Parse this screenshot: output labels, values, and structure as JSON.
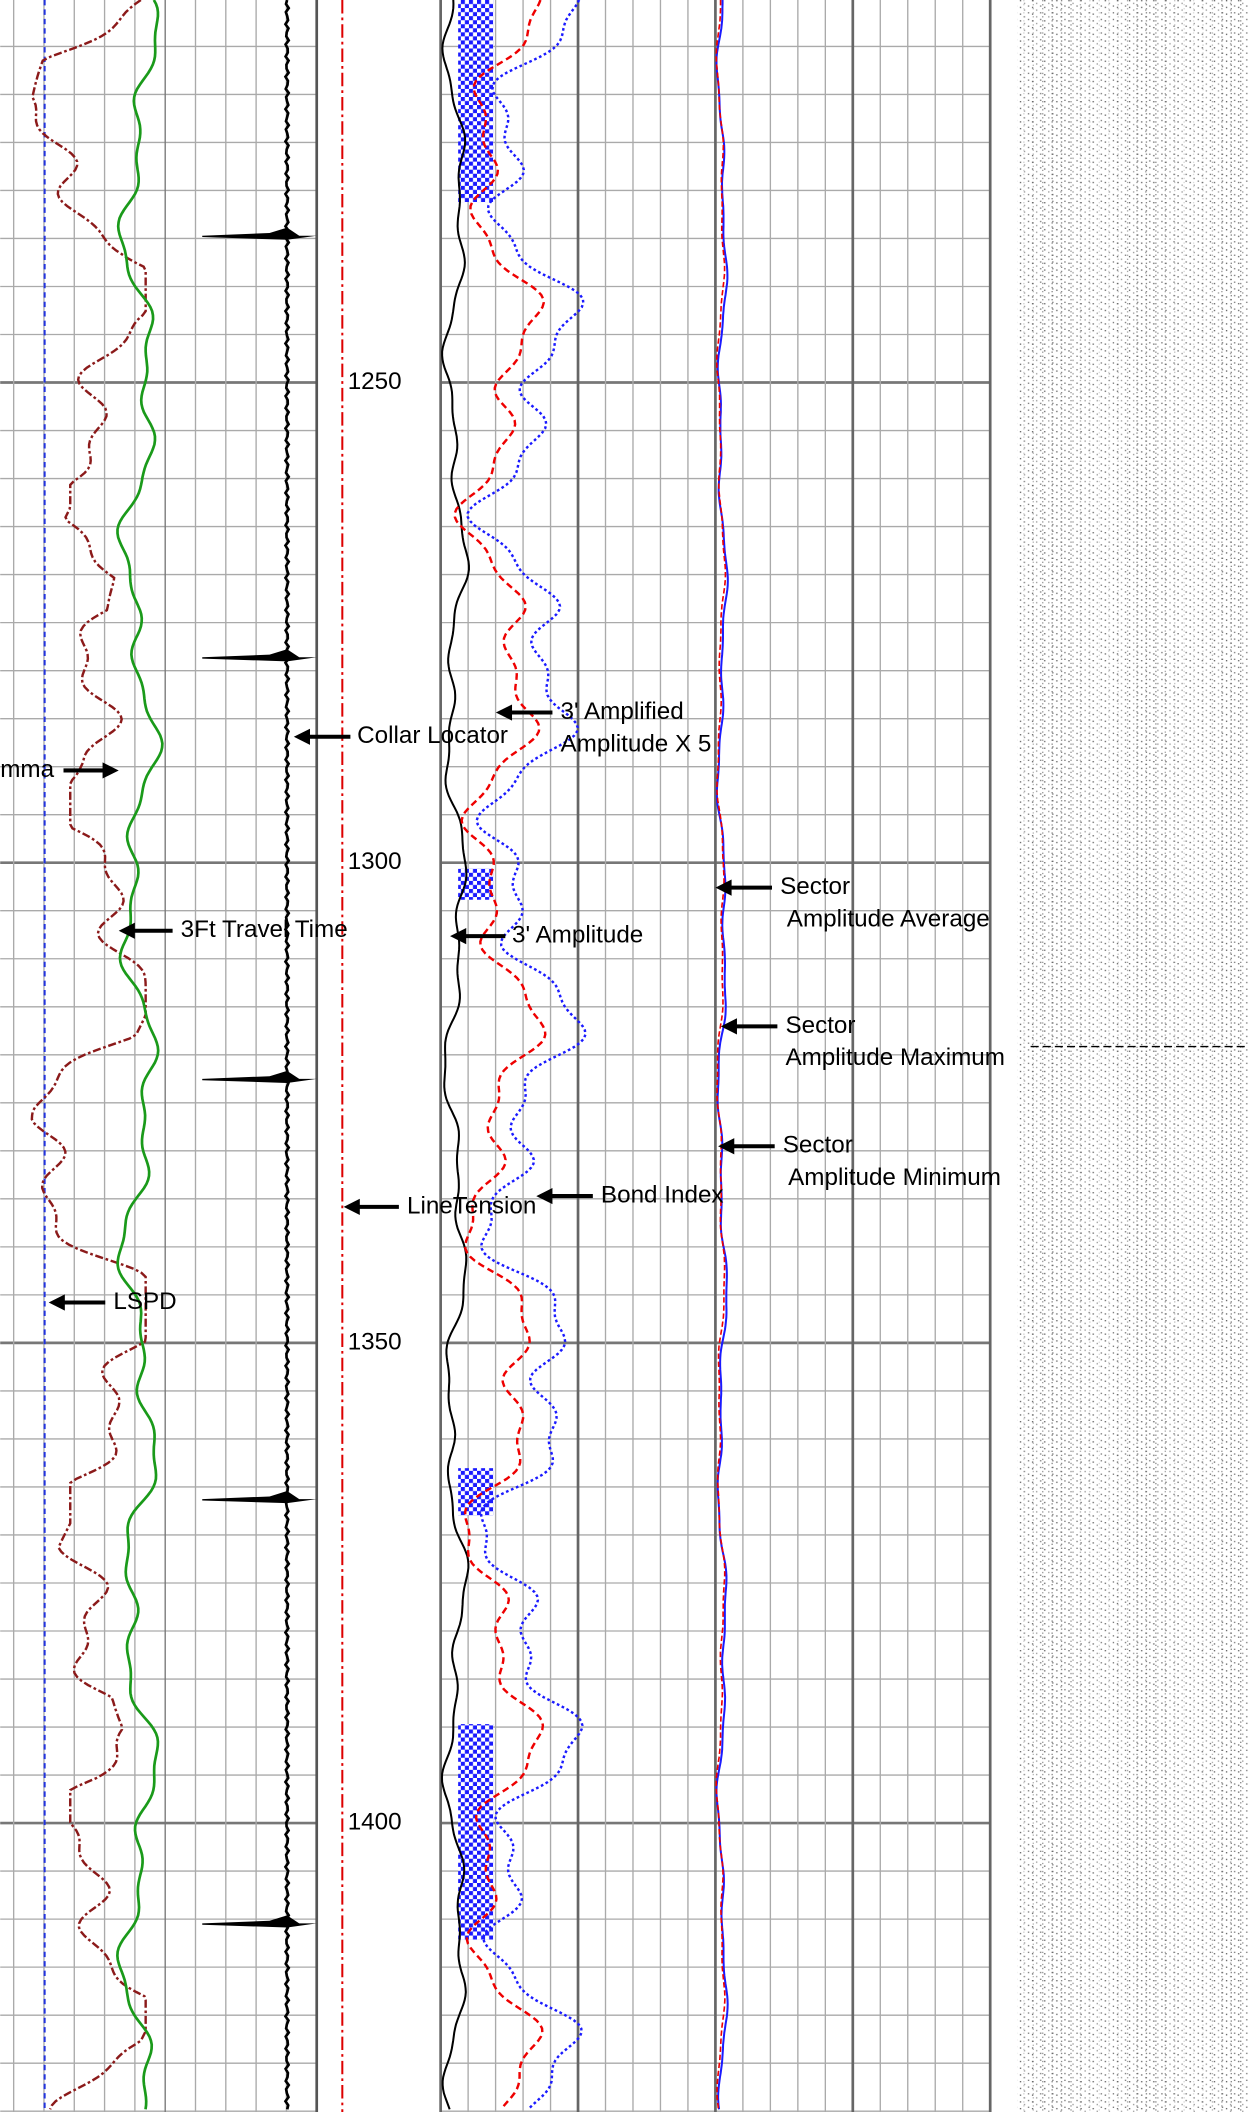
{
  "depth_track": {
    "labels": [
      1250,
      1300,
      1350,
      1400
    ]
  },
  "annotations": [
    {
      "lines": [
        "3' Amplified",
        "Amplitude X 5"
      ]
    },
    {
      "lines": [
        "Collar Locator"
      ]
    },
    {
      "lines": [
        "mma"
      ]
    },
    {
      "lines": [
        "3Ft Travel Time"
      ]
    },
    {
      "lines": [
        "3' Amplitude"
      ]
    },
    {
      "lines": [
        "Sector",
        "Amplitude Average"
      ]
    },
    {
      "lines": [
        "Sector",
        "Amplitude Maximum"
      ]
    },
    {
      "lines": [
        "Sector",
        "Amplitude Minimum"
      ]
    },
    {
      "lines": [
        "LineTension"
      ]
    },
    {
      "lines": [
        "Bond Index"
      ]
    },
    {
      "lines": [
        "LSPD"
      ]
    }
  ]
}
